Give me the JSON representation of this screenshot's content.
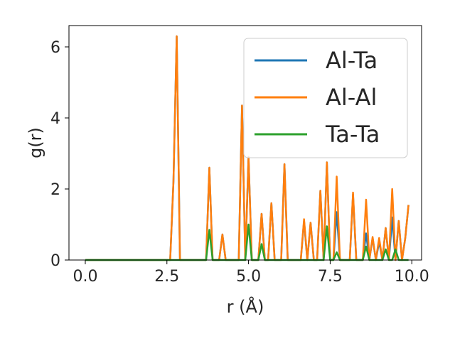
{
  "chart_data": {
    "type": "line",
    "xlabel": "r (Å)",
    "ylabel": "g(r)",
    "xlim": [
      -0.5,
      10.3
    ],
    "ylim": [
      0,
      6.6
    ],
    "xticks": [
      "0.0",
      "2.5",
      "5.0",
      "7.5",
      "10.0"
    ],
    "yticks": [
      "0",
      "2",
      "4",
      "6"
    ],
    "legend_position": "top-right",
    "series": [
      {
        "name": "Al-Ta",
        "color": "#1f77b4",
        "x": [
          0.0,
          2.6,
          2.7,
          2.8,
          2.9,
          3.7,
          3.8,
          3.9,
          4.1,
          4.2,
          4.3,
          4.7,
          4.8,
          4.9,
          5.0,
          5.1,
          5.3,
          5.4,
          5.5,
          5.6,
          5.7,
          5.8,
          6.0,
          6.1,
          6.2,
          6.6,
          6.7,
          6.8,
          6.9,
          7.0,
          7.1,
          7.2,
          7.3,
          7.4,
          7.5,
          7.6,
          7.7,
          7.8,
          8.1,
          8.2,
          8.3,
          8.5,
          8.6,
          8.7,
          8.8,
          8.9,
          9.0,
          9.1,
          9.2,
          9.3,
          9.4,
          9.5,
          9.6,
          9.7,
          9.8,
          9.9
        ],
        "y": [
          0,
          0,
          2.2,
          6.3,
          0,
          0,
          2.6,
          0,
          0,
          0.72,
          0,
          0,
          4.35,
          0,
          2.9,
          0,
          0,
          1.3,
          0,
          0,
          1.6,
          0,
          0,
          2.7,
          0,
          0,
          1.1,
          0,
          1.05,
          0,
          0,
          1.95,
          0,
          2.75,
          0,
          0,
          1.35,
          0,
          0,
          1.85,
          0,
          0,
          0.75,
          0,
          0.62,
          0,
          0.52,
          0,
          0.9,
          0,
          1.2,
          0,
          1.1,
          0,
          0.62,
          1.55
        ]
      },
      {
        "name": "Al-Al",
        "color": "#ff7f0e",
        "x": [
          0.0,
          2.6,
          2.7,
          2.8,
          2.9,
          3.7,
          3.8,
          3.9,
          4.1,
          4.2,
          4.3,
          4.7,
          4.8,
          4.9,
          5.0,
          5.1,
          5.3,
          5.4,
          5.5,
          5.6,
          5.7,
          5.8,
          6.0,
          6.1,
          6.2,
          6.6,
          6.7,
          6.8,
          6.9,
          7.0,
          7.1,
          7.2,
          7.3,
          7.4,
          7.5,
          7.6,
          7.7,
          7.8,
          8.1,
          8.2,
          8.3,
          8.5,
          8.6,
          8.7,
          8.8,
          8.9,
          9.0,
          9.1,
          9.2,
          9.3,
          9.4,
          9.5,
          9.6,
          9.7,
          9.8,
          9.9
        ],
        "y": [
          0,
          0,
          2.2,
          6.3,
          0,
          0,
          2.6,
          0,
          0,
          0.72,
          0,
          0,
          4.35,
          0,
          2.9,
          0,
          0,
          1.3,
          0,
          0,
          1.6,
          0,
          0,
          2.7,
          0,
          0,
          1.15,
          0,
          1.05,
          0,
          0,
          1.95,
          0,
          2.75,
          0,
          0,
          2.35,
          0,
          0,
          1.9,
          0,
          0,
          1.7,
          0,
          0.65,
          0,
          0.62,
          0,
          0.9,
          0,
          2.0,
          0,
          1.1,
          0,
          0.62,
          1.55
        ]
      },
      {
        "name": "Ta-Ta",
        "color": "#2ca02c",
        "x": [
          0.0,
          3.7,
          3.8,
          3.9,
          4.9,
          5.0,
          5.1,
          5.3,
          5.4,
          5.5,
          7.3,
          7.4,
          7.5,
          7.6,
          7.7,
          7.8,
          8.5,
          8.6,
          8.7,
          9.1,
          9.2,
          9.3,
          9.4,
          9.5,
          9.6,
          9.9
        ],
        "y": [
          0,
          0,
          0.85,
          0,
          0,
          1.0,
          0,
          0,
          0.45,
          0,
          0,
          0.95,
          0,
          0,
          0.22,
          0,
          0,
          0.38,
          0,
          0,
          0.3,
          0,
          0,
          0.3,
          0,
          0
        ]
      }
    ]
  }
}
